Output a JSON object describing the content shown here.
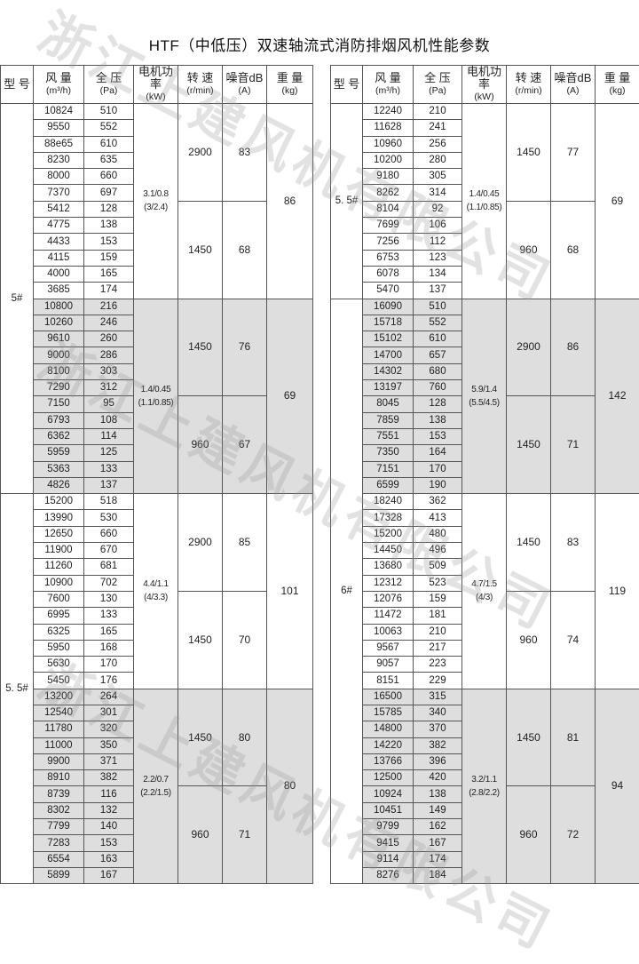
{
  "title": "HTF（中低压）双速轴流式消防排烟风机性能参数",
  "watermark": "浙江上建风机有限公司",
  "colors": {
    "shaded_row": "#dedede",
    "border": "#555555"
  },
  "headers": [
    {
      "main": "型 号",
      "sub": ""
    },
    {
      "main": "风 量",
      "sub": "(m³/h)"
    },
    {
      "main": "全 压",
      "sub": "(Pa)"
    },
    {
      "main": "电机功率",
      "sub": "(kW)"
    },
    {
      "main": "转 速",
      "sub": "(r/min)"
    },
    {
      "main": "噪音dB",
      "sub": "(A)"
    },
    {
      "main": "重 量",
      "sub": "(kg)"
    }
  ],
  "tables": [
    {
      "models": [
        {
          "model": "5#",
          "groups": [
            {
              "power": "3.1/0.8",
              "power2": "(3/2.4)",
              "weight": "86",
              "shaded": false,
              "speeds": [
                {
                  "rpm": "2900",
                  "noise": "83",
                  "rows": [
                    [
                      "10824",
                      "510"
                    ],
                    [
                      "9550",
                      "552"
                    ],
                    [
                      "88e65",
                      "610"
                    ],
                    [
                      "8230",
                      "635"
                    ],
                    [
                      "8000",
                      "660"
                    ],
                    [
                      "7370",
                      "697"
                    ]
                  ]
                },
                {
                  "rpm": "1450",
                  "noise": "68",
                  "rows": [
                    [
                      "5412",
                      "128"
                    ],
                    [
                      "4775",
                      "138"
                    ],
                    [
                      "4433",
                      "153"
                    ],
                    [
                      "4115",
                      "159"
                    ],
                    [
                      "4000",
                      "165"
                    ],
                    [
                      "3685",
                      "174"
                    ]
                  ]
                }
              ]
            },
            {
              "power": "1.4/0.45",
              "power2": "(1.1/0.85)",
              "weight": "69",
              "shaded": true,
              "speeds": [
                {
                  "rpm": "1450",
                  "noise": "76",
                  "rows": [
                    [
                      "10800",
                      "216"
                    ],
                    [
                      "10260",
                      "246"
                    ],
                    [
                      "9610",
                      "260"
                    ],
                    [
                      "9000",
                      "286"
                    ],
                    [
                      "8100",
                      "303"
                    ],
                    [
                      "7290",
                      "312"
                    ]
                  ]
                },
                {
                  "rpm": "960",
                  "noise": "67",
                  "rows": [
                    [
                      "7150",
                      "95"
                    ],
                    [
                      "6793",
                      "108"
                    ],
                    [
                      "6362",
                      "114"
                    ],
                    [
                      "5959",
                      "125"
                    ],
                    [
                      "5363",
                      "133"
                    ],
                    [
                      "4826",
                      "137"
                    ]
                  ]
                }
              ]
            }
          ]
        },
        {
          "model": "5. 5#",
          "groups": [
            {
              "power": "4.4/1.1",
              "power2": "(4/3.3)",
              "weight": "101",
              "shaded": false,
              "speeds": [
                {
                  "rpm": "2900",
                  "noise": "85",
                  "rows": [
                    [
                      "15200",
                      "518"
                    ],
                    [
                      "13990",
                      "530"
                    ],
                    [
                      "12650",
                      "660"
                    ],
                    [
                      "11900",
                      "670"
                    ],
                    [
                      "11260",
                      "681"
                    ],
                    [
                      "10900",
                      "702"
                    ]
                  ]
                },
                {
                  "rpm": "1450",
                  "noise": "70",
                  "rows": [
                    [
                      "7600",
                      "130"
                    ],
                    [
                      "6995",
                      "133"
                    ],
                    [
                      "6325",
                      "165"
                    ],
                    [
                      "5950",
                      "168"
                    ],
                    [
                      "5630",
                      "170"
                    ],
                    [
                      "5450",
                      "176"
                    ]
                  ]
                }
              ]
            },
            {
              "power": "2.2/0.7",
              "power2": "(2.2/1.5)",
              "weight": "80",
              "shaded": true,
              "speeds": [
                {
                  "rpm": "1450",
                  "noise": "80",
                  "rows": [
                    [
                      "13200",
                      "264"
                    ],
                    [
                      "12540",
                      "301"
                    ],
                    [
                      "11780",
                      "320"
                    ],
                    [
                      "11000",
                      "350"
                    ],
                    [
                      "9900",
                      "371"
                    ],
                    [
                      "8910",
                      "382"
                    ]
                  ]
                },
                {
                  "rpm": "960",
                  "noise": "71",
                  "rows": [
                    [
                      "8739",
                      "116"
                    ],
                    [
                      "8302",
                      "132"
                    ],
                    [
                      "7799",
                      "140"
                    ],
                    [
                      "7283",
                      "153"
                    ],
                    [
                      "6554",
                      "163"
                    ],
                    [
                      "5899",
                      "167"
                    ]
                  ]
                }
              ]
            }
          ]
        }
      ]
    },
    {
      "models": [
        {
          "model": "5. 5#",
          "groups": [
            {
              "power": "1.4/0.45",
              "power2": "(1.1/0.85)",
              "weight": "69",
              "shaded": false,
              "speeds": [
                {
                  "rpm": "1450",
                  "noise": "77",
                  "rows": [
                    [
                      "12240",
                      "210"
                    ],
                    [
                      "11628",
                      "241"
                    ],
                    [
                      "10960",
                      "256"
                    ],
                    [
                      "10200",
                      "280"
                    ],
                    [
                      "9180",
                      "305"
                    ],
                    [
                      "8262",
                      "314"
                    ]
                  ]
                },
                {
                  "rpm": "960",
                  "noise": "68",
                  "rows": [
                    [
                      "8104",
                      "92"
                    ],
                    [
                      "7699",
                      "106"
                    ],
                    [
                      "7256",
                      "112"
                    ],
                    [
                      "6753",
                      "123"
                    ],
                    [
                      "6078",
                      "134"
                    ],
                    [
                      "5470",
                      "137"
                    ]
                  ]
                }
              ]
            }
          ]
        },
        {
          "model": "6#",
          "groups": [
            {
              "power": "5.9/1.4",
              "power2": "(5.5/4.5)",
              "weight": "142",
              "shaded": true,
              "speeds": [
                {
                  "rpm": "2900",
                  "noise": "86",
                  "rows": [
                    [
                      "16090",
                      "510"
                    ],
                    [
                      "15718",
                      "552"
                    ],
                    [
                      "15102",
                      "610"
                    ],
                    [
                      "14700",
                      "657"
                    ],
                    [
                      "14302",
                      "680"
                    ],
                    [
                      "13197",
                      "760"
                    ]
                  ]
                },
                {
                  "rpm": "1450",
                  "noise": "71",
                  "rows": [
                    [
                      "8045",
                      "128"
                    ],
                    [
                      "7859",
                      "138"
                    ],
                    [
                      "7551",
                      "153"
                    ],
                    [
                      "7350",
                      "164"
                    ],
                    [
                      "7151",
                      "170"
                    ],
                    [
                      "6599",
                      "190"
                    ]
                  ]
                }
              ]
            },
            {
              "power": "4.7/1.5",
              "power2": "(4/3)",
              "weight": "119",
              "shaded": false,
              "speeds": [
                {
                  "rpm": "1450",
                  "noise": "83",
                  "rows": [
                    [
                      "18240",
                      "362"
                    ],
                    [
                      "17328",
                      "413"
                    ],
                    [
                      "15200",
                      "480"
                    ],
                    [
                      "14450",
                      "496"
                    ],
                    [
                      "13680",
                      "509"
                    ],
                    [
                      "12312",
                      "523"
                    ]
                  ]
                },
                {
                  "rpm": "960",
                  "noise": "74",
                  "rows": [
                    [
                      "12076",
                      "159"
                    ],
                    [
                      "11472",
                      "181"
                    ],
                    [
                      "10063",
                      "210"
                    ],
                    [
                      "9567",
                      "217"
                    ],
                    [
                      "9057",
                      "223"
                    ],
                    [
                      "8151",
                      "229"
                    ]
                  ]
                }
              ]
            },
            {
              "power": "3.2/1.1",
              "power2": "(2.8/2.2)",
              "weight": "94",
              "shaded": true,
              "speeds": [
                {
                  "rpm": "1450",
                  "noise": "81",
                  "rows": [
                    [
                      "16500",
                      "315"
                    ],
                    [
                      "15785",
                      "340"
                    ],
                    [
                      "14800",
                      "370"
                    ],
                    [
                      "14220",
                      "382"
                    ],
                    [
                      "13766",
                      "396"
                    ],
                    [
                      "12500",
                      "420"
                    ]
                  ]
                },
                {
                  "rpm": "960",
                  "noise": "72",
                  "rows": [
                    [
                      "10924",
                      "138"
                    ],
                    [
                      "10451",
                      "149"
                    ],
                    [
                      "9799",
                      "162"
                    ],
                    [
                      "9415",
                      "167"
                    ],
                    [
                      "9114",
                      "174"
                    ],
                    [
                      "8276",
                      "184"
                    ]
                  ]
                }
              ]
            }
          ]
        }
      ]
    }
  ]
}
